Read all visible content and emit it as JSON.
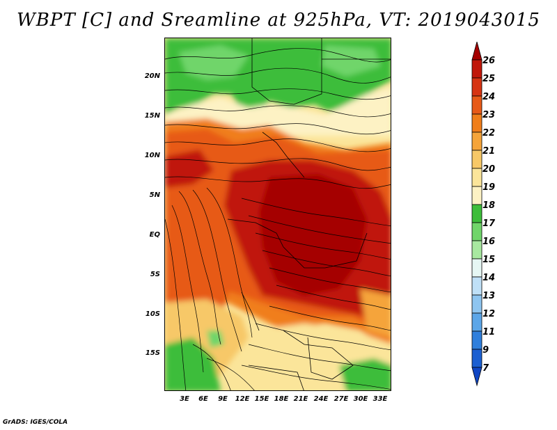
{
  "title": "WBPT [C] and Sreamline at 925hPa, VT: 2019043015",
  "credit": "GrADS: IGES/COLA",
  "map": {
    "lat_labels": [
      "20N",
      "15N",
      "10N",
      "5N",
      "EQ",
      "5S",
      "10S",
      "15S"
    ],
    "lon_labels": [
      "3E",
      "6E",
      "9E",
      "12E",
      "15E",
      "18E",
      "21E",
      "24E",
      "27E",
      "30E",
      "33E"
    ]
  },
  "colorbar": {
    "levels": [
      "26",
      "25",
      "24",
      "23",
      "22",
      "21",
      "20",
      "19",
      "18",
      "17",
      "16",
      "15",
      "14",
      "13",
      "12",
      "11",
      "9",
      "7"
    ],
    "colors": [
      "#a50000",
      "#c0170a",
      "#d63413",
      "#e75a18",
      "#f07e1a",
      "#f5a43a",
      "#f7c867",
      "#fbe59a",
      "#fdf2c4",
      "#3dbd3a",
      "#70d56a",
      "#a8e8a0",
      "#e6f7f4",
      "#bfe0f7",
      "#8ec5f0",
      "#5ca6e8",
      "#2f7fdc",
      "#1b5fd1",
      "#0f46c4"
    ]
  }
}
